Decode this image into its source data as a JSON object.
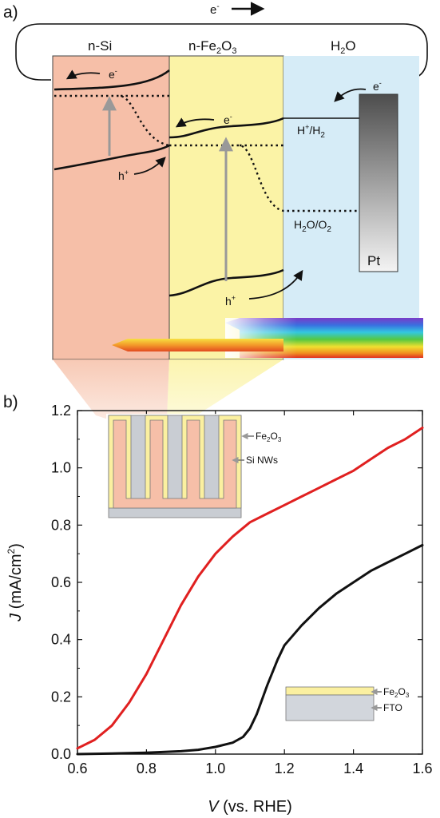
{
  "panel_a": {
    "label": "a)",
    "circuit_electron": "e",
    "layers": {
      "si": "n-Si",
      "fe": "n-Fe",
      "fe_sub": "2",
      "fe_suffix": "O",
      "fe_sub2": "3",
      "water": "H",
      "water_sub": "2",
      "water_suffix": "O"
    },
    "electron": "e",
    "hole": "h",
    "h_couple": "H",
    "h_couple_rest": "/H",
    "h_couple_sub": "2",
    "o_couple": "H",
    "o_couple_sub": "2",
    "o_couple_mid": "O/O",
    "o_couple_sub2": "2",
    "counter_electrode": "Pt",
    "colors": {
      "si": "#f6bfa8",
      "fe": "#fbf3a6",
      "water": "#d6ecf7",
      "pt_top": "#5b5b5b",
      "pt_bottom": "#f2f2f2"
    }
  },
  "panel_b": {
    "label": "b)",
    "inset_top": {
      "layer1": "Fe",
      "layer1_sub": "2",
      "layer1_suffix": "O",
      "layer1_sub2": "3",
      "layer2": "Si NWs"
    },
    "inset_bottom": {
      "layer1": "Fe",
      "layer1_sub": "2",
      "layer1_suffix": "O",
      "layer1_sub2": "3",
      "layer2": "FTO"
    }
  },
  "chart_data": {
    "type": "line",
    "xlabel_var": "V",
    "xlabel_rest": " (vs. RHE)",
    "ylabel_var": "J",
    "ylabel_rest": " (mA/cm",
    "ylabel_sup": "2",
    "ylabel_end": ")",
    "xlim": [
      0.6,
      1.6
    ],
    "ylim": [
      0.0,
      1.2
    ],
    "xticks": [
      "0.6",
      "0.8",
      "1.0",
      "1.2",
      "1.4",
      "1.6"
    ],
    "yticks": [
      "0.0",
      "0.2",
      "0.4",
      "0.6",
      "0.8",
      "1.0",
      "1.2"
    ],
    "series": [
      {
        "color": "#e02020",
        "x": [
          0.6,
          0.65,
          0.7,
          0.75,
          0.8,
          0.85,
          0.9,
          0.95,
          1.0,
          1.05,
          1.1,
          1.15,
          1.2,
          1.25,
          1.3,
          1.35,
          1.4,
          1.45,
          1.5,
          1.55,
          1.6
        ],
        "y": [
          0.02,
          0.05,
          0.1,
          0.18,
          0.28,
          0.4,
          0.52,
          0.62,
          0.7,
          0.76,
          0.81,
          0.84,
          0.87,
          0.9,
          0.93,
          0.96,
          0.99,
          1.03,
          1.07,
          1.1,
          1.14
        ]
      },
      {
        "color": "#111111",
        "x": [
          0.6,
          0.7,
          0.8,
          0.9,
          0.95,
          1.0,
          1.05,
          1.08,
          1.1,
          1.12,
          1.15,
          1.18,
          1.2,
          1.25,
          1.3,
          1.35,
          1.4,
          1.45,
          1.5,
          1.55,
          1.6
        ],
        "y": [
          0.0,
          0.002,
          0.005,
          0.01,
          0.015,
          0.025,
          0.04,
          0.06,
          0.09,
          0.14,
          0.24,
          0.33,
          0.38,
          0.45,
          0.51,
          0.56,
          0.6,
          0.64,
          0.67,
          0.7,
          0.73
        ]
      }
    ]
  }
}
